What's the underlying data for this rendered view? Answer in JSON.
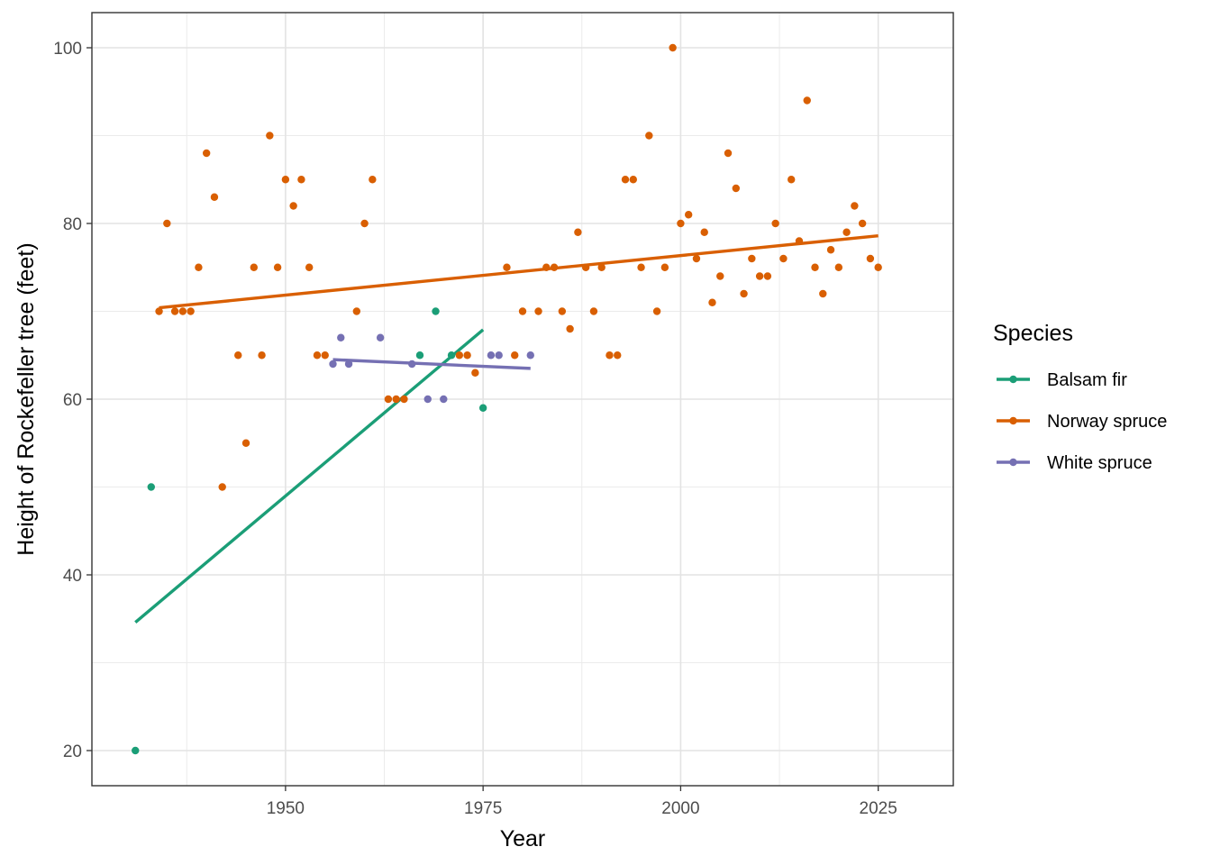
{
  "chart_data": {
    "type": "scatter",
    "xlabel": "Year",
    "ylabel": "Height of Rockefeller tree (feet)",
    "xlim": [
      1925.5,
      2034.5
    ],
    "ylim": [
      16,
      104
    ],
    "x_ticks": [
      1950,
      1975,
      2000,
      2025
    ],
    "y_ticks": [
      20,
      40,
      60,
      80,
      100
    ],
    "x_minor": [
      1937.5,
      1962.5,
      1987.5,
      2012.5
    ],
    "y_minor": [
      30,
      50,
      70,
      90
    ],
    "grid": true,
    "legend": {
      "title": "Species",
      "position": "right",
      "entries": [
        "Balsam fir",
        "Norway spruce",
        "White spruce"
      ]
    },
    "series": [
      {
        "name": "Balsam fir",
        "color": "#1b9e77",
        "points": [
          [
            1931,
            20
          ],
          [
            1933,
            50
          ],
          [
            1967,
            65
          ],
          [
            1969,
            70
          ],
          [
            1971,
            65
          ],
          [
            1975,
            59
          ]
        ],
        "trend": [
          [
            1931,
            34.6
          ],
          [
            1975,
            67.9
          ]
        ]
      },
      {
        "name": "Norway spruce",
        "color": "#d95f02",
        "points": [
          [
            1934,
            70
          ],
          [
            1935,
            80
          ],
          [
            1936,
            70
          ],
          [
            1937,
            70
          ],
          [
            1938,
            70
          ],
          [
            1939,
            75
          ],
          [
            1940,
            88
          ],
          [
            1941,
            83
          ],
          [
            1942,
            50
          ],
          [
            1944,
            65
          ],
          [
            1945,
            55
          ],
          [
            1946,
            75
          ],
          [
            1947,
            65
          ],
          [
            1948,
            90
          ],
          [
            1949,
            75
          ],
          [
            1950,
            85
          ],
          [
            1951,
            82
          ],
          [
            1952,
            85
          ],
          [
            1953,
            75
          ],
          [
            1954,
            65
          ],
          [
            1955,
            65
          ],
          [
            1959,
            70
          ],
          [
            1960,
            80
          ],
          [
            1961,
            85
          ],
          [
            1963,
            60
          ],
          [
            1964,
            60
          ],
          [
            1965,
            60
          ],
          [
            1972,
            65
          ],
          [
            1973,
            65
          ],
          [
            1974,
            63
          ],
          [
            1978,
            75
          ],
          [
            1979,
            65
          ],
          [
            1980,
            70
          ],
          [
            1982,
            70
          ],
          [
            1983,
            75
          ],
          [
            1984,
            75
          ],
          [
            1985,
            70
          ],
          [
            1986,
            68
          ],
          [
            1987,
            79
          ],
          [
            1988,
            75
          ],
          [
            1989,
            70
          ],
          [
            1990,
            75
          ],
          [
            1991,
            65
          ],
          [
            1992,
            65
          ],
          [
            1993,
            85
          ],
          [
            1994,
            85
          ],
          [
            1995,
            75
          ],
          [
            1996,
            90
          ],
          [
            1997,
            70
          ],
          [
            1998,
            75
          ],
          [
            1999,
            100
          ],
          [
            2000,
            80
          ],
          [
            2001,
            81
          ],
          [
            2002,
            76
          ],
          [
            2003,
            79
          ],
          [
            2004,
            71
          ],
          [
            2005,
            74
          ],
          [
            2006,
            88
          ],
          [
            2007,
            84
          ],
          [
            2008,
            72
          ],
          [
            2009,
            76
          ],
          [
            2010,
            74
          ],
          [
            2011,
            74
          ],
          [
            2012,
            80
          ],
          [
            2013,
            76
          ],
          [
            2014,
            85
          ],
          [
            2015,
            78
          ],
          [
            2016,
            94
          ],
          [
            2017,
            75
          ],
          [
            2018,
            72
          ],
          [
            2019,
            77
          ],
          [
            2020,
            75
          ],
          [
            2021,
            79
          ],
          [
            2022,
            82
          ],
          [
            2023,
            80
          ],
          [
            2024,
            76
          ],
          [
            2025,
            75
          ]
        ],
        "trend": [
          [
            1934,
            70.4
          ],
          [
            2025,
            78.6
          ]
        ]
      },
      {
        "name": "White spruce",
        "color": "#7570b3",
        "points": [
          [
            1956,
            64
          ],
          [
            1957,
            67
          ],
          [
            1958,
            64
          ],
          [
            1962,
            67
          ],
          [
            1966,
            64
          ],
          [
            1968,
            60
          ],
          [
            1970,
            60
          ],
          [
            1976,
            65
          ],
          [
            1977,
            65
          ],
          [
            1981,
            65
          ]
        ],
        "trend": [
          [
            1956,
            64.5
          ],
          [
            1981,
            63.5
          ]
        ]
      }
    ]
  }
}
